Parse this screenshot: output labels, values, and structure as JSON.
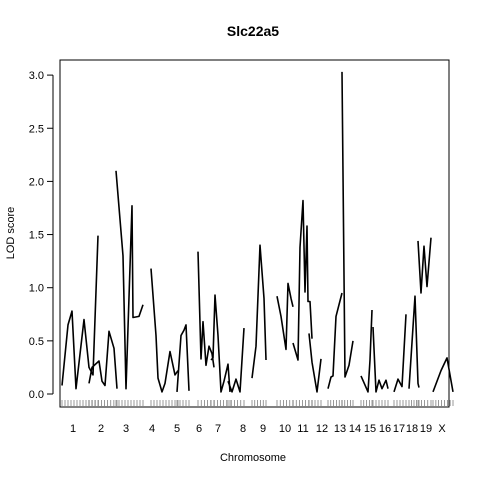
{
  "chart_data": {
    "type": "line",
    "title": "Slc22a5",
    "xlabel": "Chromosome",
    "ylabel": "LOD score",
    "ylim": [
      -0.06,
      3.1
    ],
    "y_ticks": [
      0.0,
      0.5,
      1.0,
      1.5,
      2.0,
      2.5,
      3.0
    ],
    "y_tick_labels": [
      "0.0",
      "0.5",
      "1.0",
      "1.5",
      "2.0",
      "2.5",
      "3.0"
    ],
    "grid": false,
    "legend": "none",
    "line_color": "#000000",
    "chromosomes": [
      {
        "label": "1",
        "points": [
          [
            0,
            0.08
          ],
          [
            6,
            0.65
          ],
          [
            10,
            0.78
          ],
          [
            14,
            0.05
          ],
          [
            22,
            0.7
          ],
          [
            27,
            0.25
          ],
          [
            31,
            0.18
          ],
          [
            36,
            1.49
          ]
        ]
      },
      {
        "label": "2",
        "points": [
          [
            0,
            0.1
          ],
          [
            3,
            0.25
          ],
          [
            10,
            0.31
          ],
          [
            13,
            0.12
          ],
          [
            16,
            0.08
          ],
          [
            20,
            0.59
          ],
          [
            25,
            0.43
          ],
          [
            28,
            0.05
          ]
        ]
      },
      {
        "label": "3",
        "points": [
          [
            0,
            2.1
          ],
          [
            7,
            1.3
          ],
          [
            10,
            0.05
          ],
          [
            16,
            1.77
          ],
          [
            17,
            0.72
          ],
          [
            23,
            0.73
          ],
          [
            27,
            0.84
          ]
        ]
      },
      {
        "label": "4",
        "points": [
          [
            0,
            1.18
          ],
          [
            5,
            0.55
          ],
          [
            7,
            0.15
          ],
          [
            11,
            0.02
          ],
          [
            14,
            0.1
          ],
          [
            19,
            0.4
          ],
          [
            24,
            0.18
          ],
          [
            27,
            0.22
          ]
        ]
      },
      {
        "label": "5",
        "points": [
          [
            0,
            0.02
          ],
          [
            4,
            0.55
          ],
          [
            7,
            0.6
          ],
          [
            9,
            0.65
          ],
          [
            12,
            0.03
          ]
        ]
      },
      {
        "label": "6",
        "points": [
          [
            0,
            1.34
          ],
          [
            3,
            0.33
          ],
          [
            5,
            0.68
          ],
          [
            8,
            0.27
          ],
          [
            11,
            0.45
          ],
          [
            14,
            0.38
          ],
          [
            16,
            0.25
          ]
        ]
      },
      {
        "label": "7",
        "points": [
          [
            0,
            0.32
          ],
          [
            2,
            0.34
          ],
          [
            4,
            0.93
          ],
          [
            7,
            0.55
          ],
          [
            10,
            0.02
          ],
          [
            13,
            0.12
          ],
          [
            17,
            0.28
          ],
          [
            19,
            0.02
          ]
        ]
      },
      {
        "label": "8",
        "points": [
          [
            0,
            0.12
          ],
          [
            4,
            0.02
          ],
          [
            8,
            0.14
          ],
          [
            12,
            0.02
          ],
          [
            16,
            0.62
          ]
        ]
      },
      {
        "label": "9",
        "points": [
          [
            0,
            0.15
          ],
          [
            4,
            0.45
          ],
          [
            8,
            1.4
          ],
          [
            12,
            0.9
          ],
          [
            14,
            0.32
          ]
        ]
      },
      {
        "label": "10",
        "points": [
          [
            0,
            0.92
          ],
          [
            4,
            0.73
          ],
          [
            9,
            0.42
          ],
          [
            11,
            1.04
          ],
          [
            14,
            0.9
          ],
          [
            16,
            0.82
          ]
        ]
      },
      {
        "label": "11",
        "points": [
          [
            0,
            0.48
          ],
          [
            5,
            0.32
          ],
          [
            7,
            1.38
          ],
          [
            10,
            1.82
          ],
          [
            12,
            0.96
          ],
          [
            14,
            1.58
          ],
          [
            15,
            0.87
          ],
          [
            17,
            0.87
          ],
          [
            19,
            0.52
          ]
        ]
      },
      {
        "label": "12",
        "points": [
          [
            0,
            0.57
          ],
          [
            3,
            0.3
          ],
          [
            8,
            0.02
          ],
          [
            12,
            0.33
          ]
        ]
      },
      {
        "label": "13",
        "points": [
          [
            0,
            0.05
          ],
          [
            3,
            0.16
          ],
          [
            5,
            0.17
          ],
          [
            8,
            0.73
          ],
          [
            14,
            0.95
          ]
        ]
      },
      {
        "label": "14",
        "points": [
          [
            0,
            3.03
          ],
          [
            3,
            0.16
          ],
          [
            7,
            0.27
          ],
          [
            11,
            0.5
          ]
        ]
      },
      {
        "label": "15",
        "points": [
          [
            0,
            0.17
          ],
          [
            7,
            0.02
          ],
          [
            9,
            0.32
          ],
          [
            11,
            0.79
          ]
        ]
      },
      {
        "label": "16",
        "points": [
          [
            0,
            0.63
          ],
          [
            3,
            0.02
          ],
          [
            6,
            0.13
          ],
          [
            9,
            0.05
          ],
          [
            13,
            0.13
          ],
          [
            15,
            0.05
          ]
        ]
      },
      {
        "label": "17",
        "points": [
          [
            0,
            0.02
          ],
          [
            4,
            0.14
          ],
          [
            8,
            0.07
          ],
          [
            12,
            0.75
          ]
        ]
      },
      {
        "label": "18",
        "points": [
          [
            0,
            0.05
          ],
          [
            6,
            0.92
          ],
          [
            9,
            0.1
          ],
          [
            10,
            0.06
          ]
        ]
      },
      {
        "label": "19",
        "points": [
          [
            0,
            1.44
          ],
          [
            3,
            0.95
          ],
          [
            6,
            1.39
          ],
          [
            9,
            1.01
          ],
          [
            13,
            1.47
          ]
        ]
      },
      {
        "label": "X",
        "points": [
          [
            0,
            0.02
          ],
          [
            8,
            0.22
          ],
          [
            14,
            0.34
          ],
          [
            20,
            0.02
          ]
        ]
      }
    ]
  }
}
